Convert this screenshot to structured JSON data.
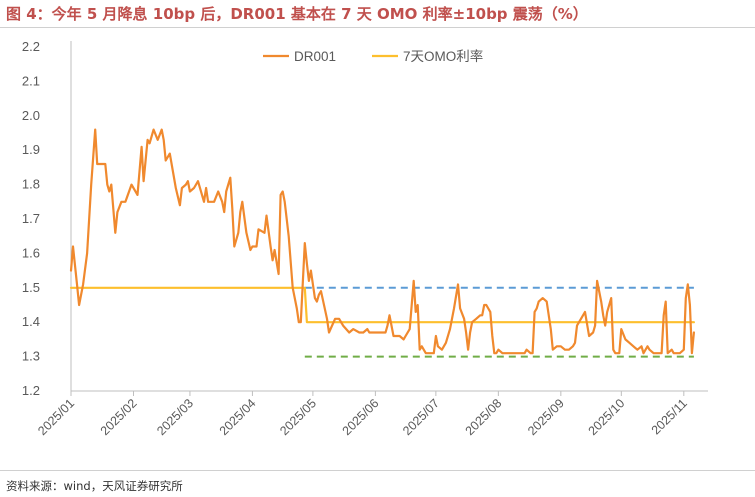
{
  "title": "图 4：今年 5 月降息 10bp 后，DR001 基本在 7 天 OMO 利率±10bp 震荡（%）",
  "source": "资料来源：wind，天风证券研究所",
  "colors": {
    "dr001": "#f0892e",
    "omo": "#fdbf2d",
    "upper_band": "#5b9bd5",
    "lower_band": "#70ad47",
    "axis_text": "#595959",
    "axis_line": "#bfbfbf"
  },
  "chart_data": {
    "type": "line",
    "title": "",
    "xlabel": "",
    "ylabel": "",
    "ylim": [
      1.2,
      2.2
    ],
    "yticks": [
      "2.2",
      "2.1",
      "2.0",
      "1.9",
      "1.8",
      "1.7",
      "1.6",
      "1.5",
      "1.4",
      "1.3",
      "1.2"
    ],
    "yticks_values": [
      2.2,
      2.1,
      2.0,
      1.9,
      1.8,
      1.7,
      1.6,
      1.5,
      1.4,
      1.3,
      1.2
    ],
    "x_range_days": [
      0,
      316
    ],
    "xticks": [
      "2025/01",
      "2025/02",
      "2025/03",
      "2025/04",
      "2025/05",
      "2025/06",
      "2025/07",
      "2025/08",
      "2025/09",
      "2025/10",
      "2025/11"
    ],
    "xticks_days": [
      0,
      31,
      59,
      90,
      120,
      151,
      181,
      212,
      243,
      273,
      304
    ],
    "legend": {
      "position": "top-center",
      "entries": [
        "DR001",
        "7天OMO利率"
      ]
    },
    "series": [
      {
        "name": "DR001",
        "x": [
          0,
          1,
          3,
          4,
          6,
          8,
          10,
          12,
          13,
          17,
          18,
          19,
          20,
          22,
          23,
          25,
          27,
          30,
          33,
          35,
          36,
          38,
          39,
          41,
          43,
          45,
          46,
          47,
          49,
          52,
          54,
          55,
          57,
          58,
          59,
          61,
          63,
          66,
          67,
          68,
          71,
          73,
          75,
          76,
          77,
          79,
          80,
          81,
          83,
          84,
          85,
          87,
          89,
          90,
          92,
          93,
          96,
          97,
          99,
          100,
          101,
          103,
          104,
          105,
          106,
          108,
          110,
          112,
          113,
          114,
          116,
          117,
          118,
          119,
          121,
          122,
          123,
          124,
          127,
          128,
          131,
          133,
          135,
          138,
          140,
          143,
          144,
          145,
          147,
          148,
          150,
          152,
          154,
          156,
          157,
          158,
          160,
          163,
          165,
          166,
          168,
          170,
          171,
          172,
          173,
          174,
          176,
          178,
          180,
          181,
          182,
          184,
          186,
          188,
          190,
          192,
          193,
          195,
          196,
          197,
          198,
          199,
          201,
          203,
          204,
          205,
          206,
          208,
          209,
          210,
          211,
          212,
          214,
          216,
          219,
          220,
          222,
          223,
          225,
          226,
          228,
          229,
          230,
          231,
          232,
          234,
          236,
          238,
          239,
          241,
          243,
          245,
          247,
          249,
          250,
          251,
          252,
          253,
          255,
          257,
          259,
          260,
          261,
          263,
          264,
          265,
          266,
          268,
          269,
          270,
          272,
          273,
          275,
          277,
          279,
          281,
          283,
          284,
          286,
          287,
          289,
          291,
          293,
          294,
          295,
          296,
          298,
          299,
          300,
          302,
          304,
          305,
          306,
          307,
          308,
          309
        ],
        "values": [
          1.55,
          1.62,
          1.51,
          1.45,
          1.51,
          1.6,
          1.8,
          1.96,
          1.86,
          1.86,
          1.8,
          1.78,
          1.8,
          1.66,
          1.72,
          1.75,
          1.75,
          1.8,
          1.77,
          1.91,
          1.81,
          1.93,
          1.92,
          1.96,
          1.93,
          1.96,
          1.93,
          1.87,
          1.89,
          1.79,
          1.74,
          1.79,
          1.8,
          1.81,
          1.78,
          1.79,
          1.81,
          1.75,
          1.79,
          1.75,
          1.75,
          1.78,
          1.75,
          1.72,
          1.78,
          1.82,
          1.73,
          1.62,
          1.66,
          1.72,
          1.75,
          1.66,
          1.61,
          1.62,
          1.62,
          1.67,
          1.66,
          1.71,
          1.62,
          1.58,
          1.61,
          1.54,
          1.77,
          1.78,
          1.75,
          1.65,
          1.5,
          1.44,
          1.4,
          1.4,
          1.63,
          1.57,
          1.52,
          1.55,
          1.47,
          1.46,
          1.48,
          1.49,
          1.41,
          1.37,
          1.41,
          1.41,
          1.39,
          1.37,
          1.38,
          1.37,
          1.37,
          1.37,
          1.38,
          1.37,
          1.37,
          1.37,
          1.37,
          1.37,
          1.39,
          1.42,
          1.36,
          1.36,
          1.35,
          1.36,
          1.38,
          1.52,
          1.43,
          1.45,
          1.32,
          1.33,
          1.31,
          1.31,
          1.31,
          1.36,
          1.33,
          1.32,
          1.34,
          1.38,
          1.44,
          1.51,
          1.44,
          1.41,
          1.37,
          1.32,
          1.37,
          1.4,
          1.41,
          1.42,
          1.42,
          1.45,
          1.45,
          1.43,
          1.36,
          1.31,
          1.31,
          1.32,
          1.31,
          1.31,
          1.31,
          1.31,
          1.31,
          1.31,
          1.31,
          1.32,
          1.31,
          1.31,
          1.43,
          1.44,
          1.46,
          1.47,
          1.46,
          1.38,
          1.32,
          1.33,
          1.33,
          1.32,
          1.32,
          1.33,
          1.34,
          1.39,
          1.4,
          1.41,
          1.43,
          1.36,
          1.37,
          1.39,
          1.52,
          1.46,
          1.42,
          1.39,
          1.43,
          1.47,
          1.32,
          1.31,
          1.31,
          1.38,
          1.35,
          1.34,
          1.33,
          1.32,
          1.33,
          1.31,
          1.33,
          1.32,
          1.31,
          1.31,
          1.31,
          1.42,
          1.46,
          1.31,
          1.32,
          1.31,
          1.31,
          1.31,
          1.32,
          1.47,
          1.51,
          1.45,
          1.31,
          1.37
        ]
      },
      {
        "name": "7天OMO利率",
        "x": [
          0,
          116,
          117,
          309
        ],
        "values": [
          1.5,
          1.5,
          1.4,
          1.4
        ]
      },
      {
        "name": "OMO+10bp",
        "style": "dashed",
        "x": [
          116,
          309
        ],
        "values": [
          1.5,
          1.5
        ]
      },
      {
        "name": "OMO-10bp",
        "style": "dashed",
        "x": [
          116,
          309
        ],
        "values": [
          1.3,
          1.3
        ]
      }
    ]
  }
}
